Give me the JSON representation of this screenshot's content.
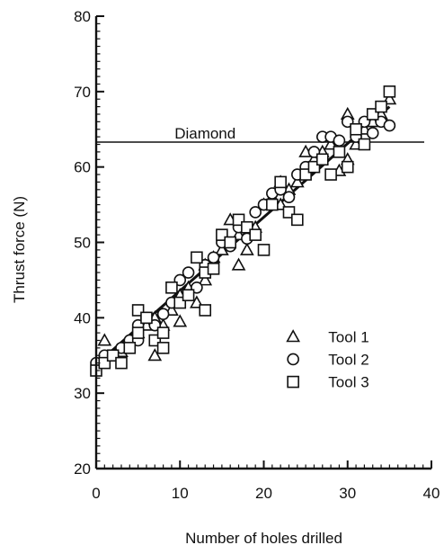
{
  "chart_data": {
    "type": "scatter",
    "title": "",
    "xlabel": "Number of holes drilled",
    "ylabel": "Thrust force (N)",
    "xlim": [
      0,
      40
    ],
    "ylim": [
      20,
      80
    ],
    "xticks": [
      "0",
      "10",
      "20",
      "30",
      "40"
    ],
    "yticks": [
      "20",
      "30",
      "40",
      "50",
      "60",
      "70",
      "80"
    ],
    "grid": false,
    "legend_position": "lower-right",
    "reference_line": {
      "label": "Diamond",
      "y": 63.3
    },
    "trend_line": {
      "x": [
        0,
        35
      ],
      "y": [
        33.8,
        68.0
      ]
    },
    "series": [
      {
        "name": "Tool 1",
        "marker": "triangle",
        "x": [
          1,
          2,
          3,
          4,
          5,
          6,
          7,
          7,
          8,
          9,
          10,
          10,
          11,
          12,
          13,
          13,
          14,
          15,
          16,
          17,
          17,
          18,
          19,
          20,
          21,
          22,
          22,
          23,
          24,
          25,
          26,
          27,
          28,
          29,
          30,
          30,
          31,
          32,
          33,
          34,
          35
        ],
        "y": [
          37,
          35,
          35.5,
          37,
          38,
          39,
          35,
          40,
          39,
          41,
          43,
          39.5,
          44,
          42,
          45,
          47,
          48,
          49,
          53,
          51,
          47,
          49,
          52,
          55,
          56,
          55,
          58,
          57,
          58,
          62,
          61,
          62,
          63,
          59.5,
          61,
          67,
          63,
          65,
          66,
          67,
          69
        ]
      },
      {
        "name": "Tool 2",
        "marker": "circle",
        "x": [
          0,
          1,
          2,
          3,
          4,
          5,
          5,
          6,
          7,
          8,
          9,
          10,
          11,
          12,
          13,
          14,
          15,
          16,
          17,
          18,
          19,
          20,
          21,
          22,
          23,
          24,
          25,
          26,
          27,
          28,
          29,
          30,
          31,
          32,
          33,
          34,
          35
        ],
        "y": [
          34,
          35,
          35,
          36,
          37,
          39,
          37,
          40,
          39,
          40.5,
          42,
          45,
          46,
          44,
          47,
          48,
          50,
          49.5,
          52,
          50.5,
          54,
          55,
          56.5,
          57,
          56,
          59,
          60,
          62,
          64,
          64,
          63.5,
          66,
          64,
          66,
          64.5,
          66,
          65.5
        ]
      },
      {
        "name": "Tool 3",
        "marker": "square",
        "x": [
          0,
          1,
          2,
          3,
          4,
          5,
          5,
          6,
          7,
          8,
          8,
          9,
          10,
          11,
          12,
          13,
          13,
          14,
          15,
          16,
          17,
          18,
          19,
          20,
          21,
          22,
          23,
          24,
          25,
          26,
          27,
          28,
          29,
          30,
          31,
          32,
          33,
          34,
          35
        ],
        "y": [
          33,
          34,
          35,
          34,
          36,
          38,
          41,
          40,
          37,
          36,
          38,
          44,
          42,
          43,
          48,
          46,
          41,
          46.5,
          51,
          50,
          53,
          52,
          51,
          49,
          55,
          58,
          54,
          53,
          59,
          60,
          61,
          59,
          62,
          60,
          65,
          63,
          67,
          68,
          70
        ]
      }
    ]
  }
}
